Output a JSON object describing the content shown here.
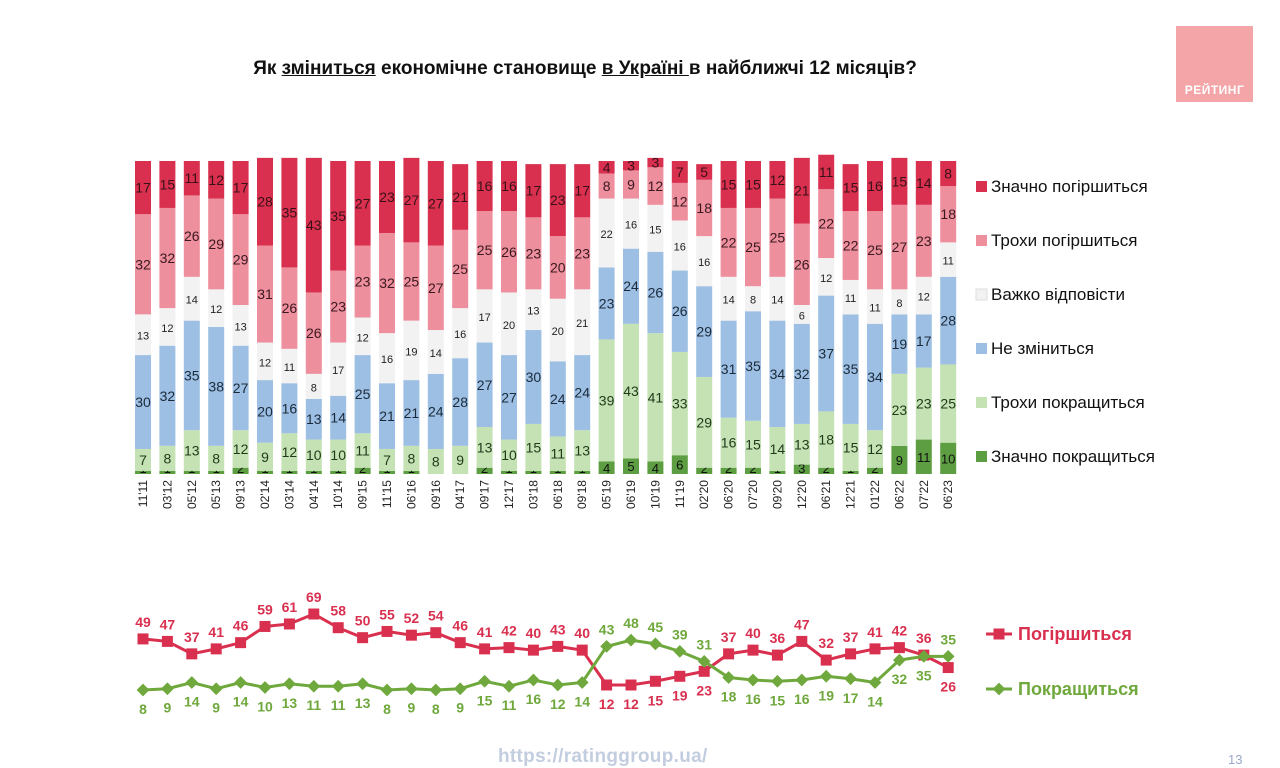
{
  "title": {
    "part1": "Як ",
    "part2": "зміниться",
    "part3": " економічне становище ",
    "part4": "в Україні ",
    "part5": "в найближчі 12 місяців?"
  },
  "logo": "РЕЙТИНГ",
  "website": "https://ratinggroup.ua/",
  "page_number": "13",
  "colors": {
    "sig_worse": "#d9304f",
    "sl_worse": "#ee8f9d",
    "hard": "#f2f2f2",
    "nochange": "#9dbfe3",
    "sl_better": "#c5e2b4",
    "sig_better": "#5e9e42",
    "line_worse": "#d9304f",
    "line_better": "#6fa83c"
  },
  "chart_data": [
    {
      "type": "bar",
      "stacked": true,
      "categories": [
        "11'11",
        "03'12",
        "05'12",
        "05'13",
        "09'13",
        "02'14",
        "03'14",
        "04'14",
        "10'14",
        "09'15",
        "11'15",
        "06'16",
        "09'16",
        "04'17",
        "09'17",
        "12'17",
        "03'18",
        "06'18",
        "09'18",
        "05'19",
        "06'19",
        "10'19",
        "11'19",
        "02'20",
        "06'20",
        "07'20",
        "09'20",
        "12'20",
        "06'21",
        "12'21",
        "01'22",
        "06'22",
        "07'22",
        "06'23"
      ],
      "ylim": [
        0,
        100
      ],
      "series": [
        {
          "name": "Значно покращиться",
          "key": "sig_better",
          "values": [
            1,
            1,
            1,
            1,
            2,
            1,
            1,
            1,
            1,
            2,
            1,
            1,
            0,
            0,
            2,
            1,
            1,
            1,
            1,
            4,
            5,
            4,
            6,
            2,
            2,
            2,
            1,
            3,
            2,
            1,
            2,
            9,
            11,
            10
          ]
        },
        {
          "name": "Трохи покращиться",
          "key": "sl_better",
          "values": [
            7,
            8,
            13,
            8,
            12,
            9,
            12,
            10,
            10,
            11,
            7,
            8,
            8,
            9,
            13,
            10,
            15,
            11,
            13,
            39,
            43,
            41,
            33,
            29,
            16,
            15,
            14,
            13,
            18,
            15,
            12,
            23,
            23,
            25
          ]
        },
        {
          "name": "Не зміниться",
          "key": "nochange",
          "values": [
            30,
            32,
            35,
            38,
            27,
            20,
            16,
            13,
            14,
            25,
            21,
            21,
            24,
            28,
            27,
            27,
            30,
            24,
            24,
            23,
            24,
            26,
            26,
            29,
            31,
            35,
            34,
            32,
            37,
            35,
            34,
            19,
            17,
            28
          ]
        },
        {
          "name": "Важко відповісти",
          "key": "hard",
          "values": [
            13,
            12,
            14,
            12,
            13,
            12,
            11,
            8,
            17,
            12,
            16,
            19,
            14,
            16,
            17,
            20,
            13,
            20,
            21,
            22,
            16,
            15,
            16,
            16,
            14,
            8,
            14,
            6,
            12,
            11,
            11,
            8,
            12,
            11
          ]
        },
        {
          "name": "Трохи погіршиться",
          "key": "sl_worse",
          "values": [
            32,
            32,
            26,
            29,
            29,
            31,
            26,
            26,
            23,
            23,
            32,
            25,
            27,
            25,
            25,
            26,
            23,
            20,
            23,
            8,
            9,
            12,
            12,
            18,
            22,
            25,
            25,
            26,
            22,
            22,
            25,
            27,
            23,
            18
          ]
        },
        {
          "name": "Значно погіршиться",
          "key": "sig_worse",
          "values": [
            17,
            15,
            11,
            12,
            17,
            28,
            35,
            43,
            35,
            27,
            23,
            27,
            27,
            21,
            16,
            16,
            17,
            23,
            17,
            4,
            3,
            3,
            7,
            5,
            15,
            15,
            12,
            21,
            11,
            15,
            16,
            15,
            14,
            8
          ]
        }
      ],
      "legend_position": "right"
    },
    {
      "type": "line",
      "categories": [
        "11'11",
        "03'12",
        "05'12",
        "05'13",
        "09'13",
        "02'14",
        "03'14",
        "04'14",
        "10'14",
        "09'15",
        "11'15",
        "06'16",
        "09'16",
        "04'17",
        "09'17",
        "12'17",
        "03'18",
        "06'18",
        "09'18",
        "05'19",
        "06'19",
        "10'19",
        "11'19",
        "02'20",
        "06'20",
        "07'20",
        "09'20",
        "12'20",
        "06'21",
        "12'21",
        "01'22",
        "06'22",
        "07'22",
        "06'23"
      ],
      "series": [
        {
          "name": "Погіршиться",
          "key": "line_worse",
          "values": [
            49,
            47,
            37,
            41,
            46,
            59,
            61,
            69,
            58,
            50,
            55,
            52,
            54,
            46,
            41,
            42,
            40,
            43,
            40,
            12,
            12,
            15,
            19,
            23,
            37,
            40,
            36,
            47,
            32,
            37,
            41,
            42,
            36,
            26
          ]
        },
        {
          "name": "Покращиться",
          "key": "line_better",
          "values": [
            8,
            9,
            14,
            9,
            14,
            10,
            13,
            11,
            11,
            13,
            8,
            9,
            8,
            9,
            15,
            11,
            16,
            12,
            14,
            43,
            48,
            45,
            39,
            31,
            18,
            16,
            15,
            16,
            19,
            17,
            14,
            32,
            35,
            35
          ]
        }
      ],
      "legend_position": "right"
    }
  ]
}
